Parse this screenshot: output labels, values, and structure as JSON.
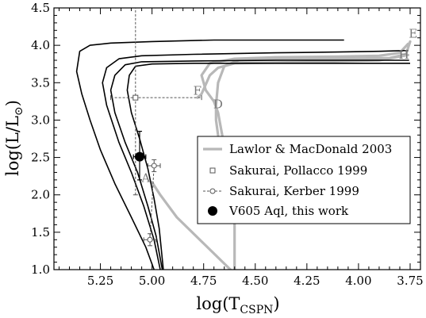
{
  "chart_data": {
    "type": "line",
    "title": "",
    "xlabel": "log(T",
    "xlabel_sub": "CSPN",
    "xlabel_close": ")",
    "ylabel": "log(L/L",
    "ylabel_sub": "⊙",
    "ylabel_close": ")",
    "xlim": [
      5.475,
      3.7
    ],
    "ylim": [
      1.0,
      4.5
    ],
    "x_reversed": true,
    "grid": false,
    "legend_position": "center-right",
    "x_ticks": [
      "5.25",
      "5.00",
      "4.75",
      "4.50",
      "4.25",
      "4.00",
      "3.75"
    ],
    "x_tick_values": [
      5.25,
      5.0,
      4.75,
      4.5,
      4.25,
      4.0,
      3.75
    ],
    "y_ticks": [
      "1.0",
      "1.5",
      "2.0",
      "2.5",
      "3.0",
      "3.5",
      "4.0",
      "4.5"
    ],
    "y_tick_values": [
      1.0,
      1.5,
      2.0,
      2.5,
      3.0,
      3.5,
      4.0,
      4.5
    ],
    "colors": {
      "tracks": "#000000",
      "lawlor": "#b8b8b8",
      "sakurai": "#555555",
      "v605": "#000000"
    },
    "series": [
      {
        "role": "track",
        "color": "#000000",
        "points": [
          [
            4.07,
            4.07
          ],
          [
            4.35,
            4.07
          ],
          [
            4.7,
            4.07
          ],
          [
            5.0,
            4.05
          ],
          [
            5.2,
            4.03
          ],
          [
            5.3,
            4.0
          ],
          [
            5.35,
            3.92
          ],
          [
            5.365,
            3.65
          ],
          [
            5.34,
            3.35
          ],
          [
            5.3,
            3.0
          ],
          [
            5.25,
            2.6
          ],
          [
            5.18,
            2.15
          ],
          [
            5.1,
            1.7
          ],
          [
            5.03,
            1.3
          ],
          [
            4.99,
            1.0
          ]
        ]
      },
      {
        "role": "track",
        "color": "#000000",
        "points": [
          [
            3.76,
            3.93
          ],
          [
            3.9,
            3.92
          ],
          [
            4.1,
            3.91
          ],
          [
            4.4,
            3.9
          ],
          [
            4.8,
            3.88
          ],
          [
            5.05,
            3.86
          ],
          [
            5.16,
            3.82
          ],
          [
            5.22,
            3.7
          ],
          [
            5.24,
            3.5
          ],
          [
            5.22,
            3.2
          ],
          [
            5.16,
            2.7
          ],
          [
            5.1,
            2.3
          ],
          [
            5.04,
            1.85
          ],
          [
            4.99,
            1.4
          ],
          [
            4.96,
            1.0
          ]
        ]
      },
      {
        "role": "track",
        "color": "#000000",
        "points": [
          [
            3.755,
            3.8
          ],
          [
            4.0,
            3.8
          ],
          [
            4.4,
            3.8
          ],
          [
            4.8,
            3.79
          ],
          [
            5.05,
            3.78
          ],
          [
            5.13,
            3.74
          ],
          [
            5.18,
            3.6
          ],
          [
            5.2,
            3.4
          ],
          [
            5.18,
            3.1
          ],
          [
            5.13,
            2.7
          ],
          [
            5.07,
            2.3
          ],
          [
            5.02,
            1.85
          ],
          [
            4.98,
            1.45
          ],
          [
            4.95,
            1.0
          ]
        ]
      },
      {
        "role": "track",
        "color": "#000000",
        "points": [
          [
            3.75,
            3.76
          ],
          [
            4.0,
            3.76
          ],
          [
            4.4,
            3.76
          ],
          [
            4.8,
            3.76
          ],
          [
            5.0,
            3.75
          ],
          [
            5.08,
            3.72
          ],
          [
            5.11,
            3.6
          ],
          [
            5.12,
            3.4
          ],
          [
            5.1,
            3.1
          ],
          [
            5.06,
            2.75
          ],
          [
            5.02,
            2.35
          ],
          [
            4.99,
            1.95
          ],
          [
            4.965,
            1.55
          ],
          [
            4.945,
            1.0
          ]
        ]
      },
      {
        "role": "lawlor",
        "name": "Lawlor & MacDonald 2003",
        "color": "#b8b8b8",
        "points": [
          [
            3.76,
            4.02
          ],
          [
            3.8,
            3.9
          ],
          [
            3.9,
            3.86
          ],
          [
            4.1,
            3.85
          ],
          [
            4.4,
            3.84
          ],
          [
            4.6,
            3.82
          ],
          [
            4.72,
            3.76
          ],
          [
            4.76,
            3.6
          ],
          [
            4.74,
            3.4
          ],
          [
            4.7,
            3.25
          ],
          [
            4.68,
            3.1
          ],
          [
            4.66,
            2.8
          ],
          [
            4.63,
            2.2
          ],
          [
            4.6,
            1.6
          ],
          [
            4.6,
            1.0
          ]
        ]
      },
      {
        "role": "lawlor",
        "color": "#b8b8b8",
        "points": [
          [
            3.75,
            4.05
          ],
          [
            3.77,
            3.88
          ],
          [
            3.85,
            3.83
          ],
          [
            4.1,
            3.82
          ],
          [
            4.4,
            3.81
          ],
          [
            4.58,
            3.8
          ],
          [
            4.65,
            3.72
          ],
          [
            4.68,
            3.5
          ],
          [
            4.69,
            3.2
          ],
          [
            4.69,
            3.0
          ],
          [
            4.68,
            2.8
          ]
        ]
      },
      {
        "role": "lawlor",
        "color": "#b8b8b8",
        "points": [
          [
            3.76,
            3.87
          ],
          [
            3.9,
            3.8
          ],
          [
            4.2,
            3.78
          ],
          [
            4.6,
            3.76
          ],
          [
            4.68,
            3.7
          ],
          [
            4.72,
            3.6
          ],
          [
            4.76,
            3.35
          ],
          [
            4.78,
            3.3
          ]
        ]
      },
      {
        "role": "lawlor",
        "color": "#b8b8b8",
        "points": [
          [
            5.0,
            2.17
          ],
          [
            4.96,
            2.0
          ],
          [
            4.88,
            1.7
          ],
          [
            4.75,
            1.35
          ],
          [
            4.62,
            1.0
          ]
        ]
      }
    ],
    "sakurai_pollacco": {
      "name": "Sakurai, Pollacco 1999",
      "x": 5.08,
      "y": 3.3,
      "xerr": [
        5.2,
        4.76
      ],
      "yerr": [
        2.0,
        4.5
      ]
    },
    "sakurai_kerber": {
      "name": "Sakurai, Kerber 1999",
      "points": [
        [
          4.99,
          2.39
        ],
        [
          5.01,
          1.4
        ]
      ],
      "xerr": 0.03,
      "yerr": 0.08
    },
    "v605": {
      "name": "V605 Aql, this work",
      "x": 5.06,
      "y": 2.51,
      "xerr": 0.03,
      "yerr": [
        2.2,
        2.85
      ]
    },
    "point_labels": [
      {
        "text": "E",
        "x": 3.735,
        "y": 4.1
      },
      {
        "text": "H",
        "x": 3.78,
        "y": 3.82
      },
      {
        "text": "F",
        "x": 4.78,
        "y": 3.34
      },
      {
        "text": "D",
        "x": 4.68,
        "y": 3.16
      },
      {
        "text": "A",
        "x": 5.03,
        "y": 2.17
      }
    ],
    "legend": [
      {
        "label": "Lawlor & MacDonald 2003",
        "marker": "gray-line"
      },
      {
        "label": "Sakurai, Pollacco 1999",
        "marker": "open-square"
      },
      {
        "label": "Sakurai, Kerber 1999",
        "marker": "open-circle-dashed"
      },
      {
        "label": "V605 Aql, this work",
        "marker": "filled-circle"
      }
    ]
  }
}
